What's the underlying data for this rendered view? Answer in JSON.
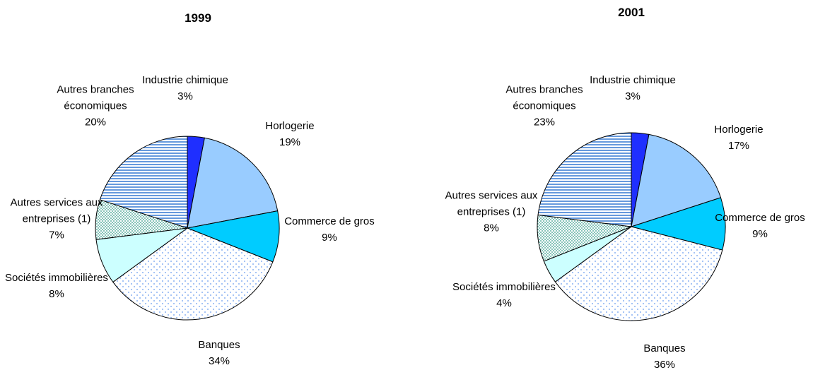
{
  "chart_data": [
    {
      "type": "pie",
      "title": "1999",
      "categories": [
        "Industrie chimique",
        "Horlogerie",
        "Commerce de gros",
        "Banques",
        "Sociétés immobilières",
        "Autres services aux entreprises (1)",
        "Autres branches économiques"
      ],
      "values": [
        3,
        19,
        9,
        34,
        8,
        7,
        20
      ],
      "value_labels": [
        "3%",
        "19%",
        "9%",
        "34%",
        "8%",
        "7%",
        "20%"
      ],
      "colors": [
        "#1f2fff",
        "#99ccff",
        "#00ccff",
        "#ffffff",
        "#ccffff",
        "#ffffff",
        "#ffffff"
      ],
      "patterns": [
        "solid",
        "solid",
        "solid",
        "blue-dots",
        "solid",
        "green-dots",
        "blue-stripes"
      ]
    },
    {
      "type": "pie",
      "title": "2001",
      "categories": [
        "Industrie chimique",
        "Horlogerie",
        "Commerce de gros",
        "Banques",
        "Sociétés immobilières",
        "Autres services aux entreprises (1)",
        "Autres branches économiques"
      ],
      "values": [
        3,
        17,
        9,
        36,
        4,
        8,
        23
      ],
      "value_labels": [
        "3%",
        "17%",
        "9%",
        "36%",
        "4%",
        "8%",
        "23%"
      ],
      "colors": [
        "#1f2fff",
        "#99ccff",
        "#00ccff",
        "#ffffff",
        "#ccffff",
        "#ffffff",
        "#ffffff"
      ],
      "patterns": [
        "solid",
        "solid",
        "solid",
        "blue-dots",
        "solid",
        "green-dots",
        "blue-stripes"
      ]
    }
  ]
}
